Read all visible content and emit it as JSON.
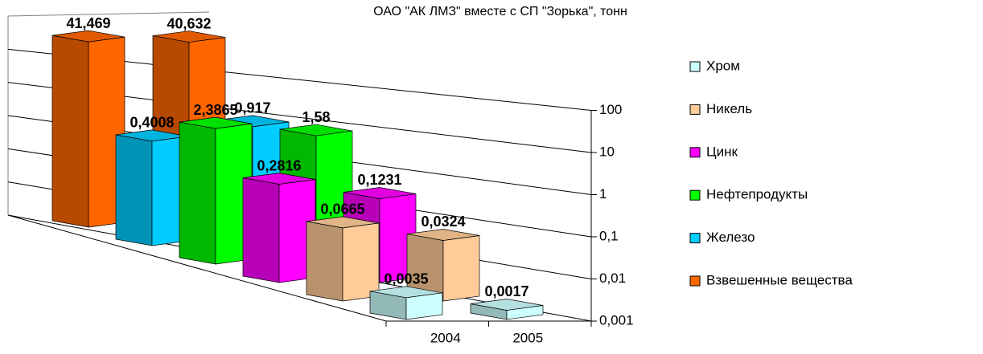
{
  "chart_data": {
    "type": "bar3d",
    "title": "ОАО \"АК ЛМЗ\" вместе с СП \"Зорька\", тонн",
    "categories": [
      "2004",
      "2005"
    ],
    "series": [
      {
        "name": "Хром",
        "color": "#ccffff",
        "values": [
          0.0035,
          0.0017
        ],
        "value_labels": [
          "0,0035",
          "0,0017"
        ]
      },
      {
        "name": "Никель",
        "color": "#ffcc99",
        "values": [
          0.0665,
          0.0324
        ],
        "value_labels": [
          "0,0665",
          "0,0324"
        ]
      },
      {
        "name": "Цинк",
        "color": "#ff00ff",
        "values": [
          0.2816,
          0.1231
        ],
        "value_labels": [
          "0,2816",
          "0,1231"
        ]
      },
      {
        "name": "Нефтепродукты",
        "color": "#00ff00",
        "values": [
          2.3865,
          1.58
        ],
        "value_labels": [
          "2,3865",
          "1,58"
        ]
      },
      {
        "name": "Железо",
        "color": "#00ccff",
        "values": [
          0.4008,
          0.917
        ],
        "value_labels": [
          "0,4008",
          "0,917"
        ]
      },
      {
        "name": "Взвешенные вещества",
        "color": "#ff6600",
        "values": [
          41.469,
          40.632
        ],
        "value_labels": [
          "41,469",
          "40,632"
        ]
      }
    ],
    "yscale": "log",
    "ylim": [
      0.001,
      1000
    ],
    "yticks": [
      {
        "value": 0.001,
        "label": "0,001"
      },
      {
        "value": 0.01,
        "label": "0,01"
      },
      {
        "value": 0.1,
        "label": "0,1"
      },
      1,
      10,
      100
    ],
    "grid": true,
    "legend": "right"
  }
}
